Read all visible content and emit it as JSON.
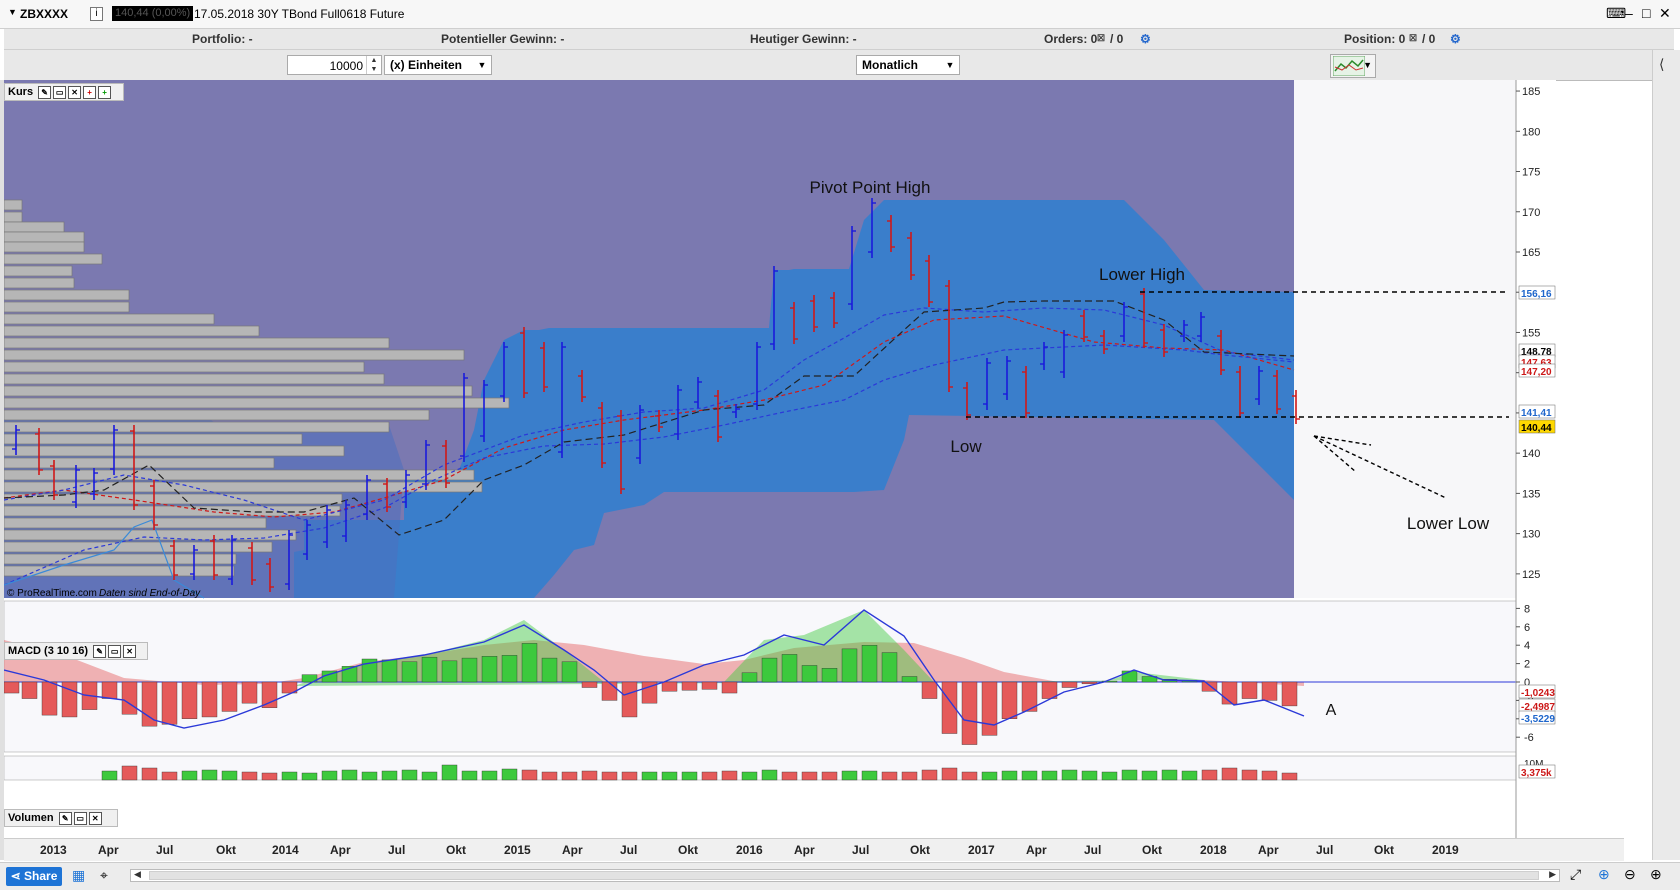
{
  "header": {
    "symbol": "ZBXXXX",
    "info_glyph": "i",
    "price_box": "140,44 (0,00%)",
    "instrument": "17.05.2018 30Y TBond Full0618 Future"
  },
  "infobar": {
    "portfolio": "Portfolio: -",
    "potential_gain": "Potentieller Gewinn: -",
    "today_gain": "Heutiger Gewinn: -",
    "orders": "Orders: 0",
    "orders_slash": "/ 0",
    "position": "Position: 0",
    "position_slash": "/ 0"
  },
  "toolbar": {
    "quantity": "10000",
    "unit_select": "(x) Einheiten",
    "period_select": "Monatlich"
  },
  "panels": {
    "price_label": "Kurs",
    "macd_label": "MACD (3 10 16)",
    "volume_label": "Volumen",
    "copyright": "© ProRealTime.com",
    "eod_note": "Daten sind End-of-Day"
  },
  "annotations": {
    "pivot_high": "Pivot Point High",
    "lower_high": "Lower High",
    "low": "Low",
    "lower_low": "Lower Low",
    "macd_a": "A"
  },
  "price_axis": {
    "ticks": [
      "185",
      "180",
      "175",
      "170",
      "165",
      "160",
      "155",
      "150",
      "145",
      "140",
      "135",
      "130",
      "125"
    ],
    "badge_156": "156,16",
    "badge_148": "148,78",
    "badge_147a": "147,63",
    "badge_147b": "147,20",
    "badge_141": "141,41",
    "badge_140": "140,44"
  },
  "macd_axis": {
    "ticks": [
      "8",
      "6",
      "4",
      "2",
      "0",
      "-2",
      "-4",
      "-6"
    ],
    "badge_1": "-1,0243",
    "badge_2": "-2,4987",
    "badge_3": "-3,5229"
  },
  "volume_axis": {
    "tick": "10M",
    "badge": "3,375k"
  },
  "xaxis_labels": [
    "2013",
    "Apr",
    "Jul",
    "Okt",
    "2014",
    "Apr",
    "Jul",
    "Okt",
    "2015",
    "Apr",
    "Jul",
    "Okt",
    "2016",
    "Apr",
    "Jul",
    "Okt",
    "2017",
    "Apr",
    "Jul",
    "Okt",
    "2018",
    "Apr",
    "Jul",
    "Okt",
    "2019"
  ],
  "bottom": {
    "share": "Share"
  },
  "colors": {
    "chart_bg": "#7b79b0",
    "cloud": "#2f7fd0",
    "up_bar": "#1a1adc",
    "down_bar": "#d01818",
    "macd_pos": "#3dc93d",
    "macd_neg": "#e55a5a"
  }
}
